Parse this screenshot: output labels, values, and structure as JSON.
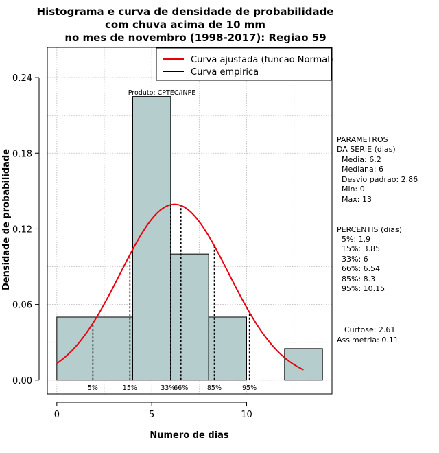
{
  "chart_data": {
    "type": "bar",
    "title_lines": [
      "Histograma e curva de densidade de probabilidade",
      "com chuva acima de 10 mm",
      "no mes de novembro (1998-2017): Regiao 59"
    ],
    "xlabel": "Numero de dias",
    "ylabel": "Densidade de probabilidade",
    "xlim": [
      -0.5,
      14.5
    ],
    "ylim": [
      -0.011,
      0.264
    ],
    "x_ticks": [
      0,
      5,
      10
    ],
    "y_ticks": [
      0.0,
      0.06,
      0.12,
      0.18,
      0.24
    ],
    "y_tick_labels": [
      "0.00",
      "0.06",
      "0.12",
      "0.18",
      "0.24"
    ],
    "grid": true,
    "bars": [
      {
        "x0": 0,
        "x1": 4,
        "density": 0.05
      },
      {
        "x0": 4,
        "x1": 6,
        "density": 0.225
      },
      {
        "x0": 6,
        "x1": 8,
        "density": 0.1
      },
      {
        "x0": 8,
        "x1": 10,
        "density": 0.05
      },
      {
        "x0": 10,
        "x1": 12,
        "density": 0.0
      },
      {
        "x0": 12,
        "x1": 14,
        "density": 0.025
      }
    ],
    "normal_fit": {
      "mean": 6.2,
      "sd": 2.86,
      "x_range": [
        0,
        13
      ],
      "color": "#e8000b"
    },
    "percentile_lines": [
      {
        "label": "5%",
        "x": 1.9
      },
      {
        "label": "15%",
        "x": 3.85
      },
      {
        "label": "33%",
        "x": 6
      },
      {
        "label": "66%",
        "x": 6.54
      },
      {
        "label": "85%",
        "x": 8.3
      },
      {
        "label": "95%",
        "x": 10.15
      }
    ],
    "legend": [
      {
        "label": "Curva ajustada (funcao Normal)",
        "color": "#e8000b"
      },
      {
        "label": "Curva empirica",
        "color": "#000000"
      }
    ],
    "legend_position": "top-right",
    "annotation": "Produto: CPTEC/INPE",
    "bar_color": "#b6cdcd"
  },
  "side_panel": {
    "params_header": [
      "PARAMETROS",
      "DA SERIE (dias)"
    ],
    "params": [
      "Media: 6.2",
      "Mediana: 6",
      "Desvio padrao: 2.86",
      "Min: 0",
      "Max: 13"
    ],
    "percentis_header": "PERCENTIS (dias)",
    "percentis": [
      "5%: 1.9",
      "15%: 3.85",
      "33%: 6",
      "66%: 6.54",
      "85%: 8.3",
      "95%: 10.15"
    ],
    "curtose": "Curtose: 2.61",
    "assimetria": "Assimetria: 0.11"
  }
}
